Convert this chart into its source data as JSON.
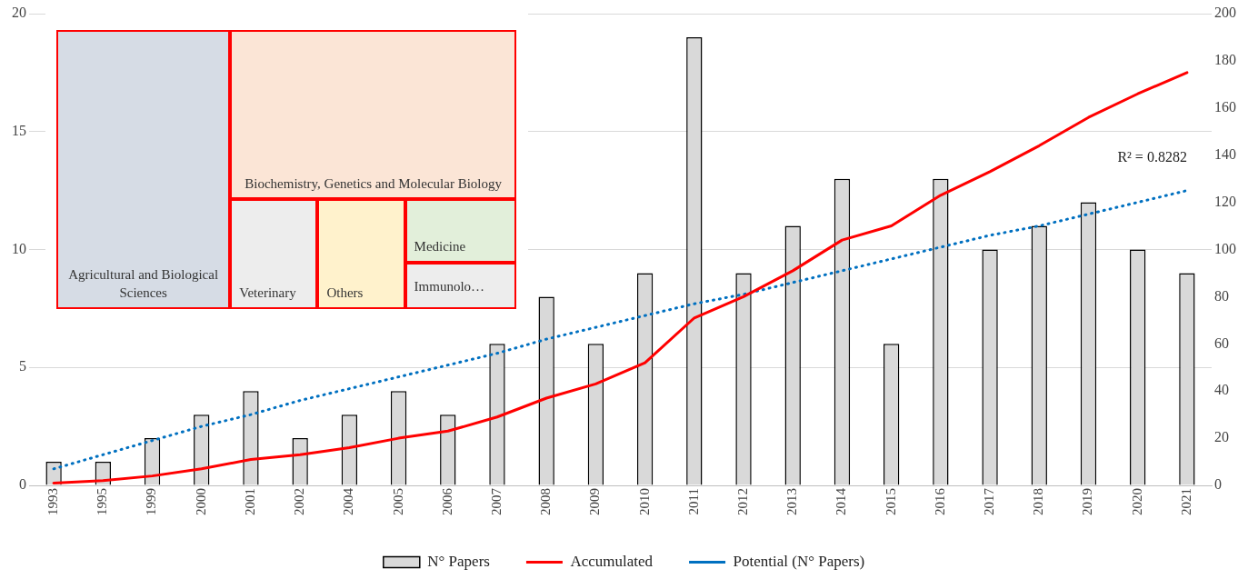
{
  "chart_data": [
    {
      "type": "bar",
      "categories": [
        "1993",
        "1995",
        "1999",
        "2000",
        "2001",
        "2002",
        "2004",
        "2005",
        "2006",
        "2007",
        "2008",
        "2009",
        "2010",
        "2011",
        "2012",
        "2013",
        "2014",
        "2015",
        "2016",
        "2017",
        "2018",
        "2019",
        "2020",
        "2021"
      ],
      "series": [
        {
          "name": "N° Papers",
          "type": "bar",
          "color": "#d9d9d9",
          "values": [
            1,
            1,
            2,
            3,
            4,
            2,
            3,
            4,
            3,
            6,
            8,
            6,
            9,
            19,
            9,
            11,
            13,
            6,
            13,
            10,
            11,
            12,
            10,
            9
          ]
        },
        {
          "name": "Accumulated",
          "type": "line",
          "axis": "y2",
          "color": "#ff0000",
          "values": [
            1,
            2,
            4,
            7,
            11,
            13,
            16,
            20,
            23,
            29,
            37,
            43,
            52,
            71,
            80,
            91,
            104,
            110,
            123,
            133,
            144,
            156,
            166,
            175
          ]
        },
        {
          "name": "Potential (N° Papers)",
          "type": "line",
          "line_style": "dotted",
          "color": "#0070c0",
          "values": [
            0.7,
            1.3,
            1.9,
            2.5,
            3.0,
            3.6,
            4.1,
            4.6,
            5.1,
            5.6,
            6.2,
            6.7,
            7.2,
            7.7,
            8.1,
            8.6,
            9.1,
            9.6,
            10.1,
            10.6,
            11.0,
            11.5,
            12.0,
            12.5
          ]
        }
      ],
      "ylim": [
        0,
        20
      ],
      "yticks": [
        0,
        5,
        10,
        15,
        20
      ],
      "y2lim": [
        0,
        200
      ],
      "y2ticks": [
        0,
        20,
        40,
        60,
        80,
        100,
        120,
        140,
        160,
        180,
        200
      ],
      "grid": "y",
      "legend": "bottom",
      "annotations": [
        "R² = 0.8282"
      ]
    },
    {
      "type": "other",
      "categories": [
        "Agricultural and Biological Sciences",
        "Biochemistry, Genetics and Molecular Biology",
        "Veterinary",
        "Others",
        "Medicine",
        "Immunolo…"
      ],
      "colors": [
        "#d6dce5",
        "#fbe5d6",
        "#ededed",
        "#fff2cc",
        "#e2efda",
        "#ededed"
      ]
    }
  ]
}
